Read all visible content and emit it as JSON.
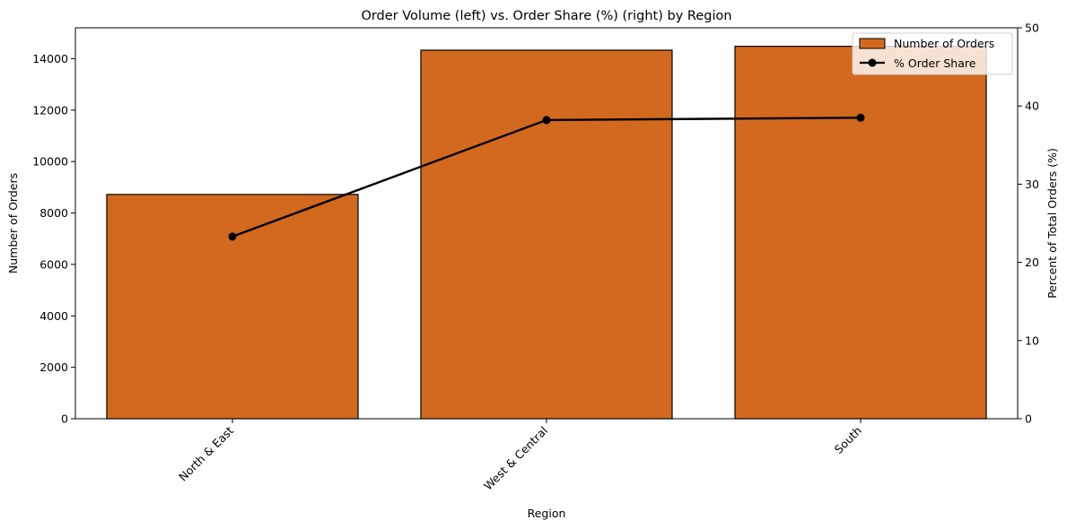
{
  "chart_data": {
    "type": "bar",
    "title": "Order Volume (left) vs. Order Share (%) (right) by Region",
    "xlabel": "Region",
    "ylabel": "Number of Orders",
    "y2label": "Percent of Total Orders (%)",
    "categories": [
      "North & East",
      "West & Central",
      "South"
    ],
    "series": [
      {
        "name": "Number of Orders",
        "kind": "bar",
        "axis": "left",
        "color": "#d2691e",
        "values": [
          8720,
          14330,
          14480
        ]
      },
      {
        "name": "% Order Share",
        "kind": "line",
        "axis": "right",
        "color": "#000000",
        "values": [
          23.3,
          38.2,
          38.5
        ]
      }
    ],
    "ylim": [
      0,
      15200
    ],
    "yticks": [
      0,
      2000,
      4000,
      6000,
      8000,
      10000,
      12000,
      14000
    ],
    "y2lim": [
      0,
      50
    ],
    "y2ticks": [
      0,
      10,
      20,
      30,
      40,
      50
    ],
    "grid": false,
    "legend_position": "top-right"
  }
}
